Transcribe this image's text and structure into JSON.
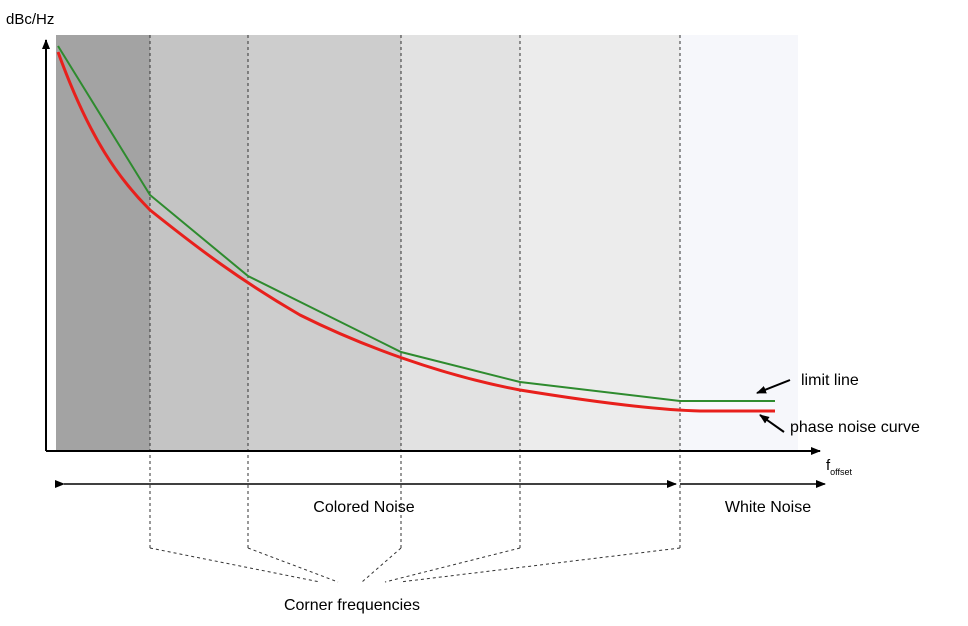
{
  "diagram": {
    "y_axis_label": "dBc/Hz",
    "x_axis_label": "f",
    "x_axis_subscript": "offset",
    "legend": {
      "limit_line": "limit line",
      "phase_noise_curve": "phase noise curve"
    },
    "regions": {
      "colored_noise": "Colored Noise",
      "white_noise": "White Noise"
    },
    "corner_frequencies_label": "Corner frequencies",
    "colors": {
      "phase_noise_curve": "#e8201c",
      "limit_line": "#2e8b2e",
      "band_1": "#a3a3a3",
      "band_2": "#c4c4c4",
      "band_3": "#cdcdcd",
      "band_4": "#e2e2e2",
      "band_5": "#ececec",
      "band_6": "#f3f3f3",
      "band_7": "#f6f7fb"
    }
  }
}
